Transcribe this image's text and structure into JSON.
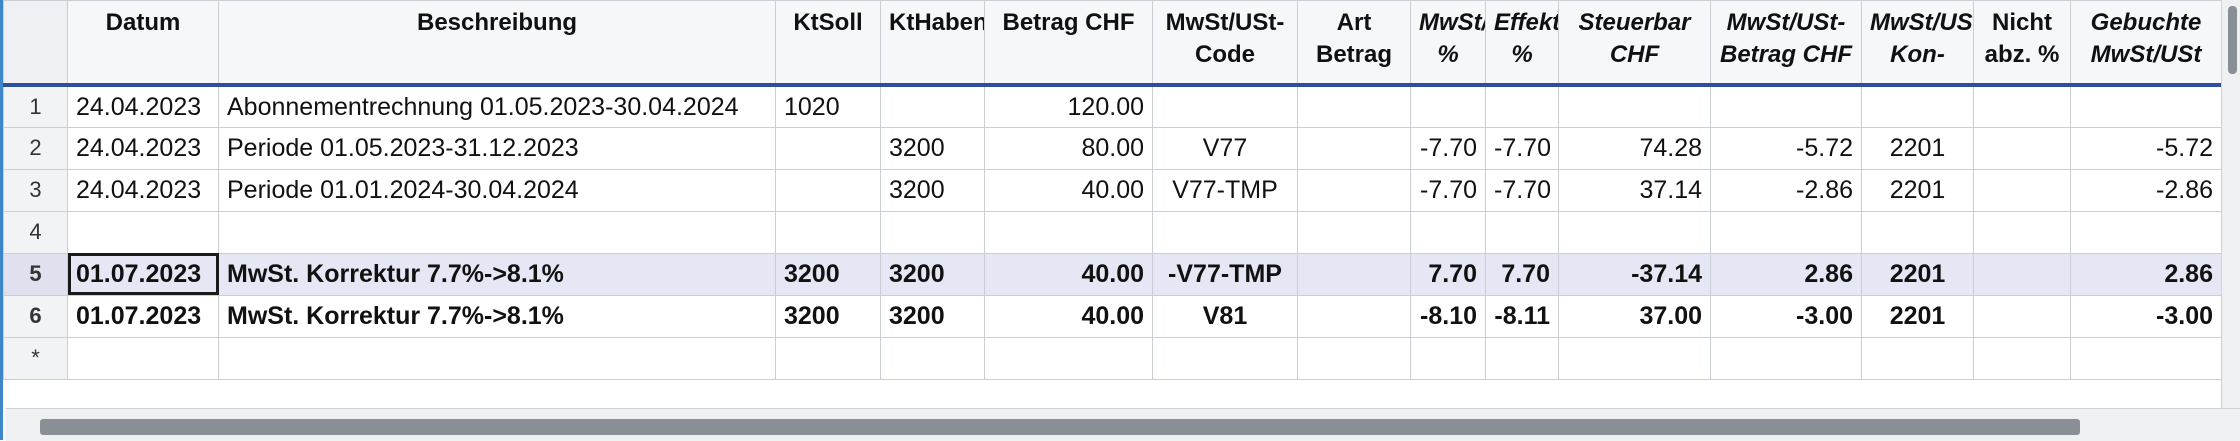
{
  "columns": [
    {
      "key": "rownum",
      "label": ""
    },
    {
      "key": "datum",
      "label": "Datum"
    },
    {
      "key": "beschreibung",
      "label": "Beschreibung"
    },
    {
      "key": "ktsoll",
      "label": "KtSoll"
    },
    {
      "key": "kthaben",
      "label": "KtHaben"
    },
    {
      "key": "betrag",
      "label": "Betrag CHF"
    },
    {
      "key": "code",
      "label": "MwSt/USt-Code"
    },
    {
      "key": "art",
      "label": "Art Betrag"
    },
    {
      "key": "ustpct",
      "label": "MwSt/USt-%"
    },
    {
      "key": "effpct",
      "label": "Effekt. %"
    },
    {
      "key": "steuerbar",
      "label": "Steuerbar CHF"
    },
    {
      "key": "ustbetrag",
      "label": "MwSt/USt-Betrag CHF"
    },
    {
      "key": "ustkonto",
      "label": "MwSt/USt-Kon-"
    },
    {
      "key": "nichtabz",
      "label": "Nicht abz. %"
    },
    {
      "key": "gebucht",
      "label": "Gebuchte MwSt/USt"
    }
  ],
  "rows": [
    {
      "rownum": "1",
      "datum": "24.04.2023",
      "beschreibung": "Abonnementrechnung 01.05.2023-30.04.2024",
      "ktsoll": "1020",
      "kthaben": "",
      "betrag": "120.00",
      "code": "",
      "art": "",
      "ustpct": "",
      "effpct": "",
      "steuerbar": "",
      "ustbetrag": "",
      "ustkonto": "",
      "nichtabz": "",
      "gebucht": ""
    },
    {
      "rownum": "2",
      "datum": "24.04.2023",
      "beschreibung": "Periode 01.05.2023-31.12.2023",
      "ktsoll": "",
      "kthaben": "3200",
      "betrag": "80.00",
      "code": "V77",
      "art": "",
      "ustpct": "-7.70",
      "effpct": "-7.70",
      "steuerbar": "74.28",
      "ustbetrag": "-5.72",
      "ustkonto": "2201",
      "nichtabz": "",
      "gebucht": "-5.72"
    },
    {
      "rownum": "3",
      "datum": "24.04.2023",
      "beschreibung": "Periode 01.01.2024-30.04.2024",
      "ktsoll": "",
      "kthaben": "3200",
      "betrag": "40.00",
      "code": "V77-TMP",
      "art": "",
      "ustpct": "-7.70",
      "effpct": "-7.70",
      "steuerbar": "37.14",
      "ustbetrag": "-2.86",
      "ustkonto": "2201",
      "nichtabz": "",
      "gebucht": "-2.86"
    },
    {
      "rownum": "4",
      "datum": "",
      "beschreibung": "",
      "ktsoll": "",
      "kthaben": "",
      "betrag": "",
      "code": "",
      "art": "",
      "ustpct": "",
      "effpct": "",
      "steuerbar": "",
      "ustbetrag": "",
      "ustkonto": "",
      "nichtabz": "",
      "gebucht": ""
    },
    {
      "rownum": "5",
      "datum": "01.07.2023",
      "beschreibung": "MwSt. Korrektur 7.7%->8.1%",
      "ktsoll": "3200",
      "kthaben": "3200",
      "betrag": "40.00",
      "code": "-V77-TMP",
      "art": "",
      "ustpct": "7.70",
      "effpct": "7.70",
      "steuerbar": "-37.14",
      "ustbetrag": "2.86",
      "ustkonto": "2201",
      "nichtabz": "",
      "gebucht": "2.86"
    },
    {
      "rownum": "6",
      "datum": "01.07.2023",
      "beschreibung": "MwSt. Korrektur 7.7%->8.1%",
      "ktsoll": "3200",
      "kthaben": "3200",
      "betrag": "40.00",
      "code": "V81",
      "art": "",
      "ustpct": "-8.10",
      "effpct": "-8.11",
      "steuerbar": "37.00",
      "ustbetrag": "-3.00",
      "ustkonto": "2201",
      "nichtabz": "",
      "gebucht": "-3.00"
    },
    {
      "rownum": "*",
      "datum": "",
      "beschreibung": "",
      "ktsoll": "",
      "kthaben": "",
      "betrag": "",
      "code": "",
      "art": "",
      "ustpct": "",
      "effpct": "",
      "steuerbar": "",
      "ustbetrag": "",
      "ustkonto": "",
      "nichtabz": "",
      "gebucht": ""
    }
  ],
  "colors": {
    "negative": "#e0161b",
    "header_rule": "#2f4e9e",
    "selected_row": "#e6e7f4",
    "window_border": "#3f86c9"
  },
  "icons": {
    "horizontal_scrollbar": "scrollbar-thumb",
    "vertical_scrollbar": "scrollbar-thumb"
  }
}
